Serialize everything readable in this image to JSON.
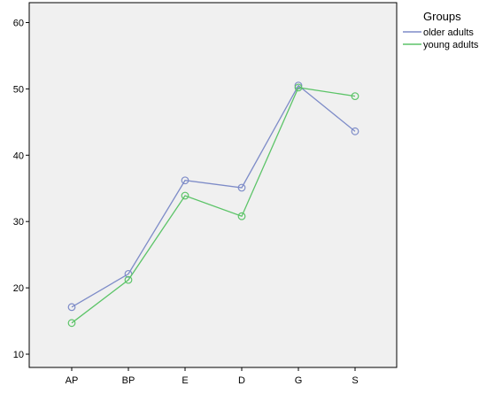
{
  "chart_data": {
    "type": "line",
    "title": "",
    "xlabel": "",
    "ylabel": "",
    "categories": [
      "AP",
      "BP",
      "E",
      "D",
      "G",
      "S"
    ],
    "ylim": [
      8,
      63
    ],
    "yticks": [
      10,
      20,
      30,
      40,
      50,
      60
    ],
    "grid": false,
    "legend": {
      "title": "Groups",
      "position": "top-right, outside plot"
    },
    "series": [
      {
        "name": "older adults",
        "color": "#7E8CC8",
        "marker": "open-circle",
        "values": [
          17.1,
          22.1,
          36.2,
          35.1,
          50.5,
          43.6
        ]
      },
      {
        "name": "young adults",
        "color": "#5CC468",
        "marker": "open-circle",
        "values": [
          14.7,
          21.2,
          33.9,
          30.8,
          50.2,
          48.9
        ]
      }
    ]
  }
}
